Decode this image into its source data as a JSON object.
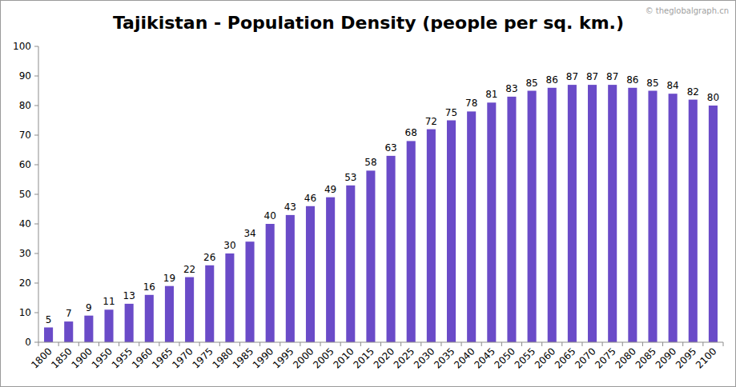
{
  "chart_data": {
    "type": "bar",
    "title": "Tajikistan - Population Density (people per sq. km.)",
    "annotations": [
      "© theglobalgraph.cn"
    ],
    "categories": [
      "1800",
      "1850",
      "1900",
      "1950",
      "1955",
      "1960",
      "1965",
      "1970",
      "1975",
      "1980",
      "1985",
      "1990",
      "1995",
      "2000",
      "2005",
      "2010",
      "2015",
      "2020",
      "2025",
      "2030",
      "2035",
      "2040",
      "2045",
      "2050",
      "2055",
      "2060",
      "2065",
      "2070",
      "2075",
      "2080",
      "2085",
      "2090",
      "2095",
      "2100"
    ],
    "values": [
      5,
      7,
      9,
      11,
      13,
      16,
      19,
      22,
      26,
      30,
      34,
      40,
      43,
      46,
      49,
      53,
      58,
      63,
      68,
      72,
      75,
      78,
      81,
      83,
      85,
      86,
      87,
      87,
      87,
      86,
      85,
      84,
      82,
      80
    ],
    "color": "#6a4bc8",
    "ylim": [
      0,
      100
    ],
    "yticks": [
      0,
      10,
      20,
      30,
      40,
      50,
      60,
      70,
      80,
      90,
      100
    ],
    "grid": false,
    "data_labels": true
  }
}
